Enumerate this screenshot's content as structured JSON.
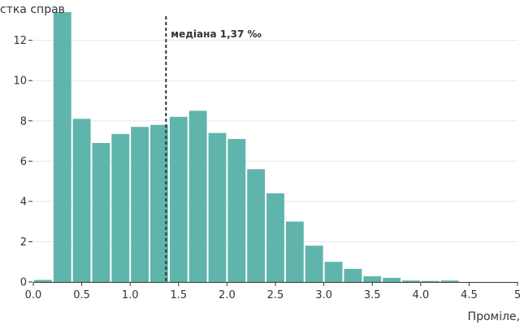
{
  "chart_data": {
    "type": "bar",
    "ylabel": "стка справ",
    "xlabel": "Проміле,",
    "x_ticks": [
      "0.0",
      "0.5",
      "1.0",
      "1.5",
      "2.0",
      "2.5",
      "3.0",
      "3.5",
      "4.0",
      "4.5",
      "5"
    ],
    "y_ticks": [
      "0",
      "2",
      "4",
      "6",
      "8",
      "10",
      "12"
    ],
    "xlim": [
      0,
      5
    ],
    "ylim": [
      0,
      13.6
    ],
    "bin_width": 0.2,
    "bins": [
      {
        "x0": 0.0,
        "value": 0.1
      },
      {
        "x0": 0.2,
        "value": 13.4
      },
      {
        "x0": 0.4,
        "value": 8.1
      },
      {
        "x0": 0.6,
        "value": 6.9
      },
      {
        "x0": 0.8,
        "value": 7.35
      },
      {
        "x0": 1.0,
        "value": 7.7
      },
      {
        "x0": 1.2,
        "value": 7.8
      },
      {
        "x0": 1.4,
        "value": 8.2
      },
      {
        "x0": 1.6,
        "value": 8.5
      },
      {
        "x0": 1.8,
        "value": 7.4
      },
      {
        "x0": 2.0,
        "value": 7.1
      },
      {
        "x0": 2.2,
        "value": 5.6
      },
      {
        "x0": 2.4,
        "value": 4.4
      },
      {
        "x0": 2.6,
        "value": 3.0
      },
      {
        "x0": 2.8,
        "value": 1.8
      },
      {
        "x0": 3.0,
        "value": 1.0
      },
      {
        "x0": 3.2,
        "value": 0.65
      },
      {
        "x0": 3.4,
        "value": 0.28
      },
      {
        "x0": 3.6,
        "value": 0.2
      },
      {
        "x0": 3.8,
        "value": 0.07
      },
      {
        "x0": 4.0,
        "value": 0.05
      },
      {
        "x0": 4.2,
        "value": 0.07
      }
    ],
    "median": {
      "value": 1.37,
      "label": "медіана 1,37 ‰"
    },
    "grid": true,
    "colors": {
      "bar": "#5fb5ab",
      "grid": "#e8e8e8",
      "axis": "#333333",
      "median_line": "#333333"
    }
  }
}
